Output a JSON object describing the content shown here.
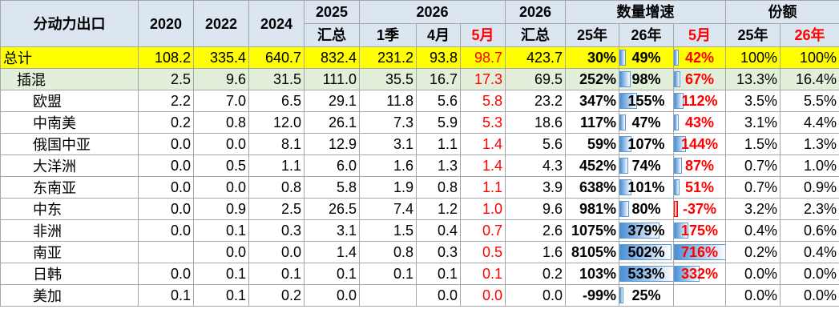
{
  "header": {
    "title": "分动力出口",
    "years": [
      "2020",
      "2022",
      "2024"
    ],
    "total_2025": [
      "2025",
      "汇总"
    ],
    "y2026": "2026",
    "y2026_sub": [
      "1季",
      "4月",
      "5月"
    ],
    "total_2026": [
      "2026",
      "汇总"
    ],
    "growth": "数量增速",
    "growth_sub": [
      "25年",
      "26年",
      "5月"
    ],
    "share": "份额",
    "share_sub": [
      "25年",
      "26年"
    ]
  },
  "table": {
    "rows": [
      {
        "label": "总计",
        "cells": [
          "108.2",
          "335.4",
          "640.7",
          "832.4",
          "231.2",
          "93.8",
          "98.7",
          "423.7",
          "30%",
          "49%",
          "42%",
          "100%",
          "100%"
        ]
      },
      {
        "label": "插混",
        "cells": [
          "2.5",
          "9.6",
          "31.5",
          "111.0",
          "35.5",
          "16.7",
          "17.3",
          "69.5",
          "252%",
          "98%",
          "67%",
          "13.3%",
          "16.4%"
        ]
      },
      {
        "label": "欧盟",
        "cells": [
          "2.2",
          "7.0",
          "6.5",
          "29.1",
          "11.8",
          "5.6",
          "5.8",
          "23.2",
          "347%",
          "155%",
          "112%",
          "3.5%",
          "5.5%"
        ]
      },
      {
        "label": "中南美",
        "cells": [
          "0.2",
          "0.8",
          "12.0",
          "26.1",
          "7.3",
          "5.9",
          "5.3",
          "18.6",
          "117%",
          "47%",
          "43%",
          "3.1%",
          "4.4%"
        ]
      },
      {
        "label": "俄国中亚",
        "cells": [
          "0.0",
          "0.0",
          "8.1",
          "12.9",
          "3.1",
          "1.1",
          "1.4",
          "5.6",
          "59%",
          "107%",
          "144%",
          "1.5%",
          "1.3%"
        ]
      },
      {
        "label": "大洋洲",
        "cells": [
          "0.0",
          "0.5",
          "1.1",
          "6.0",
          "1.6",
          "1.3",
          "1.4",
          "4.3",
          "452%",
          "74%",
          "87%",
          "0.7%",
          "1.0%"
        ]
      },
      {
        "label": "东南亚",
        "cells": [
          "0.0",
          "0.0",
          "0.8",
          "5.8",
          "1.9",
          "0.8",
          "1.1",
          "3.9",
          "638%",
          "101%",
          "51%",
          "0.7%",
          "0.9%"
        ]
      },
      {
        "label": "中东",
        "cells": [
          "0.0",
          "0.9",
          "2.5",
          "26.5",
          "7.4",
          "1.2",
          "1.0",
          "9.6",
          "981%",
          "80%",
          "-37%",
          "3.2%",
          "2.3%"
        ]
      },
      {
        "label": "非洲",
        "cells": [
          "0.0",
          "0.1",
          "0.3",
          "3.1",
          "1.5",
          "0.4",
          "0.7",
          "2.6",
          "1075%",
          "379%",
          "175%",
          "0.4%",
          "0.6%"
        ]
      },
      {
        "label": "南亚",
        "cells": [
          null,
          "0.0",
          "0.0",
          "1.4",
          "0.8",
          "0.3",
          "0.5",
          "1.6",
          "8105%",
          "502%",
          "716%",
          "0.2%",
          "0.4%"
        ]
      },
      {
        "label": "日韩",
        "cells": [
          "0.0",
          "0.1",
          "0.1",
          "0.1",
          "0.1",
          "0.1",
          "0.1",
          "0.2",
          "103%",
          "533%",
          "332%",
          "0.0%",
          "0.0%"
        ]
      },
      {
        "label": "美加",
        "cells": [
          "0.1",
          "0.1",
          "0.2",
          "0.0",
          null,
          "0.0",
          "0.0",
          "0.0",
          "-99%",
          "25%",
          null,
          "0.0%",
          "0.0%"
        ]
      }
    ]
  }
}
